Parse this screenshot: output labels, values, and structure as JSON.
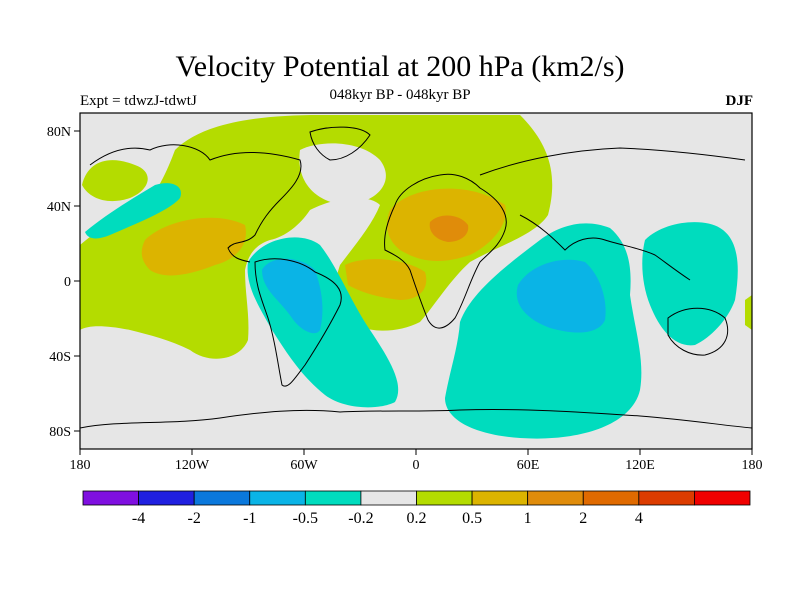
{
  "title": "Velocity Potential at 200 hPa (km2/s)",
  "left_label": "Expt = tdwzJ-tdwtJ",
  "center_label": "048kyr BP - 048kyr BP",
  "right_label": "DJF",
  "axes": {
    "x_ticks": [
      "180",
      "120W",
      "60W",
      "0",
      "60E",
      "120E",
      "180"
    ],
    "y_ticks": [
      "80N",
      "40N",
      "0",
      "40S",
      "80S"
    ]
  },
  "colorbar": {
    "colors": [
      "#7f0fe0",
      "#2020e0",
      "#0a78dc",
      "#0ab4e6",
      "#00dcbe",
      "#e6e6e6",
      "#b4dc00",
      "#dcb400",
      "#e08c0a",
      "#e06a00",
      "#dc3c00",
      "#f00000"
    ],
    "labels": [
      "-4",
      "-2",
      "-1",
      "-0.5",
      "-0.2",
      "0.2",
      "0.5",
      "1",
      "2",
      "4"
    ]
  },
  "colors": {
    "background": "#e6e6e6",
    "lime": "#b4dc00",
    "orange": "#dcb400",
    "dark_orange": "#e08c0a",
    "cyan": "#00dcbe",
    "blue": "#0ab4e6"
  }
}
